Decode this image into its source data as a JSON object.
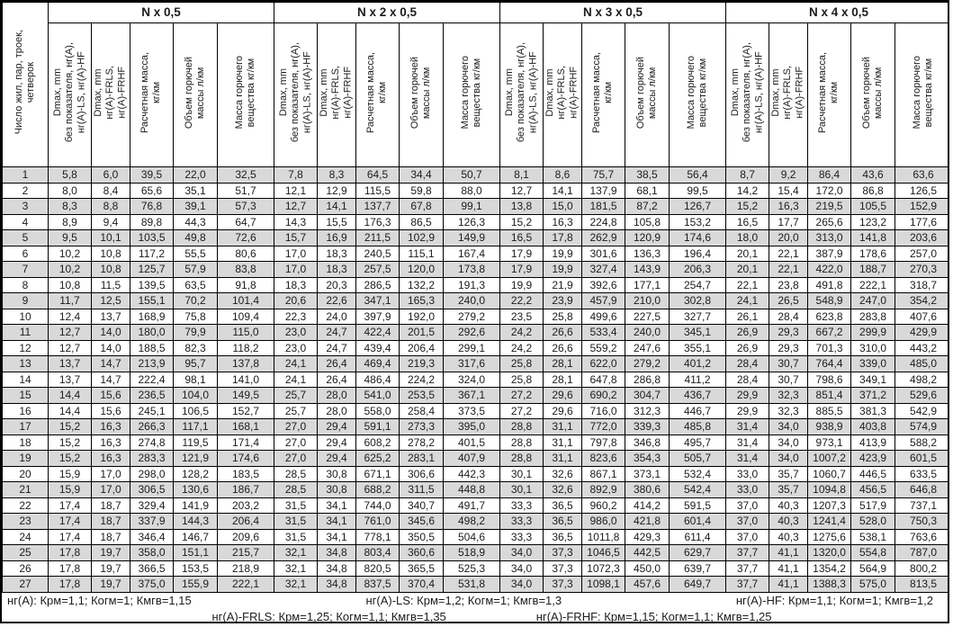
{
  "header": {
    "row_label": "Число жил, пар, троек,\nчетверок",
    "groups": [
      "N x 0,5",
      "N x 2 x 0,5",
      "N x 3 x 0,5",
      "N x 4 x 0,5"
    ],
    "subcolumns": [
      "Dmax, mm\nбез показателя, нг(А),\nнг(А)-LS, нг(А)-HF",
      "Dmax, mm\nнг(А)-FRLS,\nнг(А)-FRHF",
      "Расчетная масса,\nкг/км",
      "Объем горючей\nмассы л/км",
      "Масса горючего\nвещества кг/км"
    ]
  },
  "chart_data": {
    "type": "table",
    "row_header": "Число жил, пар, троек, четверок",
    "column_groups": [
      "N x 0,5",
      "N x 2 x 0,5",
      "N x 3 x 0,5",
      "N x 4 x 0,5"
    ],
    "sub_columns_per_group": [
      "Dmax, mm без показателя, нг(А), нг(А)-LS, нг(А)-HF",
      "Dmax, mm нг(А)-FRLS, нг(А)-FRHF",
      "Расчетная масса, кг/км",
      "Объем горючей массы л/км",
      "Масса горючего вещества кг/км"
    ],
    "rows": [
      [
        "1",
        "5,8",
        "6,0",
        "39,5",
        "22,0",
        "32,5",
        "7,8",
        "8,3",
        "64,5",
        "34,4",
        "50,7",
        "8,1",
        "8,6",
        "75,7",
        "38,5",
        "56,4",
        "8,7",
        "9,2",
        "86,4",
        "43,6",
        "63,6"
      ],
      [
        "2",
        "8,0",
        "8,4",
        "65,6",
        "35,1",
        "51,7",
        "12,1",
        "12,9",
        "115,5",
        "59,8",
        "88,0",
        "12,7",
        "14,1",
        "137,9",
        "68,1",
        "99,5",
        "14,2",
        "15,4",
        "172,0",
        "86,8",
        "126,5"
      ],
      [
        "3",
        "8,3",
        "8,8",
        "76,8",
        "39,1",
        "57,3",
        "12,7",
        "14,1",
        "137,7",
        "67,8",
        "99,1",
        "13,8",
        "15,0",
        "181,5",
        "87,2",
        "126,7",
        "15,2",
        "16,3",
        "219,5",
        "105,5",
        "152,9"
      ],
      [
        "4",
        "8,9",
        "9,4",
        "89,8",
        "44,3",
        "64,7",
        "14,3",
        "15,5",
        "176,3",
        "86,5",
        "126,3",
        "15,2",
        "16,3",
        "224,8",
        "105,8",
        "153,2",
        "16,5",
        "17,7",
        "265,6",
        "123,2",
        "177,6"
      ],
      [
        "5",
        "9,5",
        "10,1",
        "103,5",
        "49,8",
        "72,6",
        "15,7",
        "16,9",
        "211,5",
        "102,9",
        "149,9",
        "16,5",
        "17,8",
        "262,9",
        "120,9",
        "174,6",
        "18,0",
        "20,0",
        "313,0",
        "141,8",
        "203,6"
      ],
      [
        "6",
        "10,2",
        "10,8",
        "117,2",
        "55,5",
        "80,6",
        "17,0",
        "18,3",
        "240,5",
        "115,1",
        "167,4",
        "17,9",
        "19,9",
        "301,6",
        "136,3",
        "196,4",
        "20,1",
        "22,1",
        "387,9",
        "178,6",
        "257,0"
      ],
      [
        "7",
        "10,2",
        "10,8",
        "125,7",
        "57,9",
        "83,8",
        "17,0",
        "18,3",
        "257,5",
        "120,0",
        "173,8",
        "17,9",
        "19,9",
        "327,4",
        "143,9",
        "206,3",
        "20,1",
        "22,1",
        "422,0",
        "188,7",
        "270,3"
      ],
      [
        "8",
        "10,8",
        "11,5",
        "139,5",
        "63,5",
        "91,8",
        "18,3",
        "20,3",
        "286,5",
        "132,2",
        "191,3",
        "19,9",
        "21,9",
        "392,6",
        "177,1",
        "254,7",
        "22,1",
        "23,8",
        "491,8",
        "222,1",
        "318,7"
      ],
      [
        "9",
        "11,7",
        "12,5",
        "155,1",
        "70,2",
        "101,4",
        "20,6",
        "22,6",
        "347,1",
        "165,3",
        "240,0",
        "22,2",
        "23,9",
        "457,9",
        "210,0",
        "302,8",
        "24,1",
        "26,5",
        "548,9",
        "247,0",
        "354,2"
      ],
      [
        "10",
        "12,4",
        "13,7",
        "168,9",
        "75,8",
        "109,4",
        "22,3",
        "24,0",
        "397,9",
        "192,0",
        "279,2",
        "23,5",
        "25,8",
        "499,6",
        "227,5",
        "327,7",
        "26,1",
        "28,4",
        "623,8",
        "283,8",
        "407,6"
      ],
      [
        "11",
        "12,7",
        "14,0",
        "180,0",
        "79,9",
        "115,0",
        "23,0",
        "24,7",
        "422,4",
        "201,5",
        "292,6",
        "24,2",
        "26,6",
        "533,4",
        "240,0",
        "345,1",
        "26,9",
        "29,3",
        "667,2",
        "299,9",
        "429,9"
      ],
      [
        "12",
        "12,7",
        "14,0",
        "188,5",
        "82,3",
        "118,2",
        "23,0",
        "24,7",
        "439,4",
        "206,4",
        "299,1",
        "24,2",
        "26,6",
        "559,2",
        "247,6",
        "355,1",
        "26,9",
        "29,3",
        "701,3",
        "310,0",
        "443,2"
      ],
      [
        "13",
        "13,7",
        "14,7",
        "213,9",
        "95,7",
        "137,8",
        "24,1",
        "26,4",
        "469,4",
        "219,3",
        "317,6",
        "25,8",
        "28,1",
        "622,0",
        "279,2",
        "401,2",
        "28,4",
        "30,7",
        "764,4",
        "339,0",
        "485,0"
      ],
      [
        "14",
        "13,7",
        "14,7",
        "222,4",
        "98,1",
        "141,0",
        "24,1",
        "26,4",
        "486,4",
        "224,2",
        "324,0",
        "25,8",
        "28,1",
        "647,8",
        "286,8",
        "411,2",
        "28,4",
        "30,7",
        "798,6",
        "349,1",
        "498,2"
      ],
      [
        "15",
        "14,4",
        "15,6",
        "236,5",
        "104,0",
        "149,5",
        "25,7",
        "28,0",
        "541,0",
        "253,5",
        "367,1",
        "27,2",
        "29,6",
        "690,2",
        "304,7",
        "436,7",
        "29,9",
        "32,3",
        "851,4",
        "371,2",
        "529,6"
      ],
      [
        "16",
        "14,4",
        "15,6",
        "245,1",
        "106,5",
        "152,7",
        "25,7",
        "28,0",
        "558,0",
        "258,4",
        "373,5",
        "27,2",
        "29,6",
        "716,0",
        "312,3",
        "446,7",
        "29,9",
        "32,3",
        "885,5",
        "381,3",
        "542,9"
      ],
      [
        "17",
        "15,2",
        "16,3",
        "266,3",
        "117,1",
        "168,1",
        "27,0",
        "29,4",
        "591,1",
        "273,3",
        "395,0",
        "28,8",
        "31,1",
        "772,0",
        "339,3",
        "485,8",
        "31,4",
        "34,0",
        "938,9",
        "403,8",
        "574,9"
      ],
      [
        "18",
        "15,2",
        "16,3",
        "274,8",
        "119,5",
        "171,4",
        "27,0",
        "29,4",
        "608,2",
        "278,2",
        "401,5",
        "28,8",
        "31,1",
        "797,8",
        "346,8",
        "495,7",
        "31,4",
        "34,0",
        "973,1",
        "413,9",
        "588,2"
      ],
      [
        "19",
        "15,2",
        "16,3",
        "283,3",
        "121,9",
        "174,6",
        "27,0",
        "29,4",
        "625,2",
        "283,1",
        "407,9",
        "28,8",
        "31,1",
        "823,6",
        "354,3",
        "505,7",
        "31,4",
        "34,0",
        "1007,2",
        "423,9",
        "601,5"
      ],
      [
        "20",
        "15,9",
        "17,0",
        "298,0",
        "128,2",
        "183,5",
        "28,5",
        "30,8",
        "671,1",
        "306,6",
        "442,3",
        "30,1",
        "32,6",
        "867,1",
        "373,1",
        "532,4",
        "33,0",
        "35,7",
        "1060,7",
        "446,5",
        "633,5"
      ],
      [
        "21",
        "15,9",
        "17,0",
        "306,5",
        "130,6",
        "186,7",
        "28,5",
        "30,8",
        "688,2",
        "311,5",
        "448,8",
        "30,1",
        "32,6",
        "892,9",
        "380,6",
        "542,4",
        "33,0",
        "35,7",
        "1094,8",
        "456,5",
        "646,8"
      ],
      [
        "22",
        "17,4",
        "18,7",
        "329,4",
        "141,9",
        "203,2",
        "31,5",
        "34,1",
        "744,0",
        "340,7",
        "491,7",
        "33,3",
        "36,5",
        "960,2",
        "414,2",
        "591,5",
        "37,0",
        "40,3",
        "1207,3",
        "517,9",
        "737,1"
      ],
      [
        "23",
        "17,4",
        "18,7",
        "337,9",
        "144,3",
        "206,4",
        "31,5",
        "34,1",
        "761,0",
        "345,6",
        "498,2",
        "33,3",
        "36,5",
        "986,0",
        "421,8",
        "601,4",
        "37,0",
        "40,3",
        "1241,4",
        "528,0",
        "750,3"
      ],
      [
        "24",
        "17,4",
        "18,7",
        "346,4",
        "146,7",
        "209,6",
        "31,5",
        "34,1",
        "778,1",
        "350,5",
        "504,6",
        "33,3",
        "36,5",
        "1011,8",
        "429,3",
        "611,4",
        "37,0",
        "40,3",
        "1275,6",
        "538,1",
        "763,6"
      ],
      [
        "25",
        "17,8",
        "19,7",
        "358,0",
        "151,1",
        "215,7",
        "32,1",
        "34,8",
        "803,4",
        "360,6",
        "518,9",
        "34,0",
        "37,3",
        "1046,5",
        "442,5",
        "629,7",
        "37,7",
        "41,1",
        "1320,0",
        "554,8",
        "787,0"
      ],
      [
        "26",
        "17,8",
        "19,7",
        "366,5",
        "153,5",
        "218,9",
        "32,1",
        "34,8",
        "820,5",
        "365,5",
        "525,3",
        "34,0",
        "37,3",
        "1072,3",
        "450,0",
        "639,7",
        "37,7",
        "41,1",
        "1354,2",
        "564,9",
        "800,2"
      ],
      [
        "27",
        "17,8",
        "19,7",
        "375,0",
        "155,9",
        "222,1",
        "32,1",
        "34,8",
        "837,5",
        "370,4",
        "531,8",
        "34,0",
        "37,3",
        "1098,1",
        "457,6",
        "649,7",
        "37,7",
        "41,1",
        "1388,3",
        "575,0",
        "813,5"
      ]
    ]
  },
  "footer": {
    "line1": [
      "нг(А): Крм=1,1;  Когм=1;  Кмгв=1,15",
      "нг(А)-LS: Крм=1,2;  Когм=1;  Кмгв=1,3",
      "нг(А)-HF: Крм=1,1;  Когм=1;  Кмгв=1,2"
    ],
    "line2": [
      "нг(А)-FRLS: Крм=1,25;  Когм=1,1;  Кмгв=1,35",
      "нг(А)-FRHF: Крм=1,15;  Когм=1,1;  Кмгв=1,25"
    ]
  },
  "colors": {
    "shaded_row": "#d9d9d9",
    "border": "#000000",
    "text": "#1c1c1c",
    "background": "#ffffff"
  }
}
